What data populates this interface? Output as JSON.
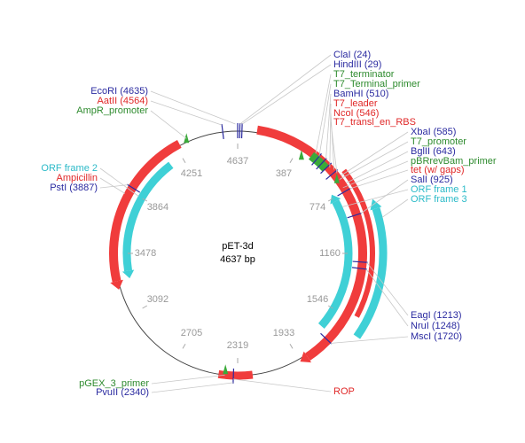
{
  "map": {
    "name": "pET-3d",
    "length": "4637 bp"
  },
  "ticks": [
    4637,
    387,
    774,
    1160,
    1546,
    1933,
    2319,
    2705,
    3092,
    3478,
    3864,
    4251
  ],
  "labels": [
    {
      "text": "ClaI (24)",
      "color": "#2a2aa0"
    },
    {
      "text": "HindIII (29)",
      "color": "#2a2aa0"
    },
    {
      "text": "T7_terminator",
      "color": "#2e8b2e"
    },
    {
      "text": "T7_Terminal_primer",
      "color": "#2e8b2e"
    },
    {
      "text": "BamHI (510)",
      "color": "#2a2aa0"
    },
    {
      "text": "T7_leader",
      "color": "#e02828"
    },
    {
      "text": "NcoI (546)",
      "color": "#e02828"
    },
    {
      "text": "T7_transl_en_RBS",
      "color": "#e02828"
    },
    {
      "text": "XbaI (585)",
      "color": "#2a2aa0"
    },
    {
      "text": "T7_promoter",
      "color": "#2e8b2e"
    },
    {
      "text": "BglII (643)",
      "color": "#2a2aa0"
    },
    {
      "text": "pBRrevBam_primer",
      "color": "#2e8b2e"
    },
    {
      "text": "tet (w/ gaps)",
      "color": "#e02828"
    },
    {
      "text": "SalI (925)",
      "color": "#2a2aa0"
    },
    {
      "text": "ORF frame 1",
      "color": "#2bbac8"
    },
    {
      "text": "ORF frame 3",
      "color": "#2bbac8"
    },
    {
      "text": "EagI (1213)",
      "color": "#2a2aa0"
    },
    {
      "text": "NruI (1248)",
      "color": "#2a2aa0"
    },
    {
      "text": "MscI (1720)",
      "color": "#2a2aa0"
    },
    {
      "text": "ROP",
      "color": "#e02828"
    },
    {
      "text": "EcoRI (4635)",
      "color": "#2a2aa0"
    },
    {
      "text": "AatII (4564)",
      "color": "#e02828"
    },
    {
      "text": "AmpR_promoter",
      "color": "#2e8b2e"
    },
    {
      "text": "ORF frame 2",
      "color": "#2bbac8"
    },
    {
      "text": "Ampicillin",
      "color": "#e02828"
    },
    {
      "text": "PstI (3887)",
      "color": "#2a2aa0"
    },
    {
      "text": "pGEX_3_primer",
      "color": "#2e8b2e"
    },
    {
      "text": "PvuII (2340)",
      "color": "#2a2aa0"
    }
  ]
}
